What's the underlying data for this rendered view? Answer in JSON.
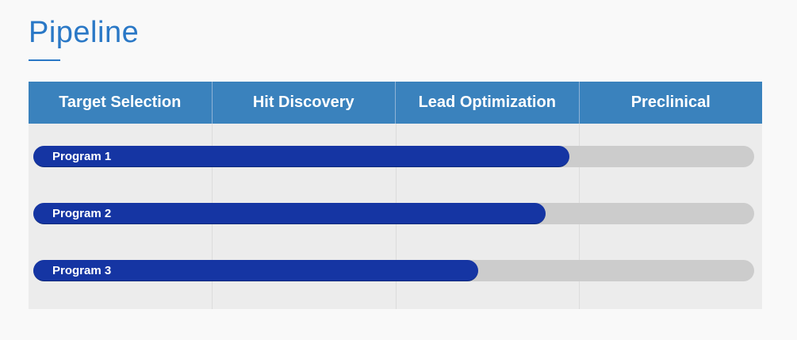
{
  "page": {
    "title": "Pipeline"
  },
  "colors": {
    "title": "#2a78c6",
    "header_bg": "#3a82bd",
    "track": "#cccccc",
    "progress": "#1535a3",
    "panel": "#ececec"
  },
  "chart_data": {
    "type": "bar",
    "orientation": "horizontal",
    "title": "Pipeline",
    "stages": [
      "Target Selection",
      "Hit Discovery",
      "Lead Optimization",
      "Preclinical"
    ],
    "programs": [
      {
        "name": "Program 1",
        "progress_stages": 2.95
      },
      {
        "name": "Program 2",
        "progress_stages": 2.82
      },
      {
        "name": "Program 3",
        "progress_stages": 2.45
      }
    ],
    "x_range": [
      0,
      4
    ],
    "grid": true,
    "legend": "none"
  }
}
